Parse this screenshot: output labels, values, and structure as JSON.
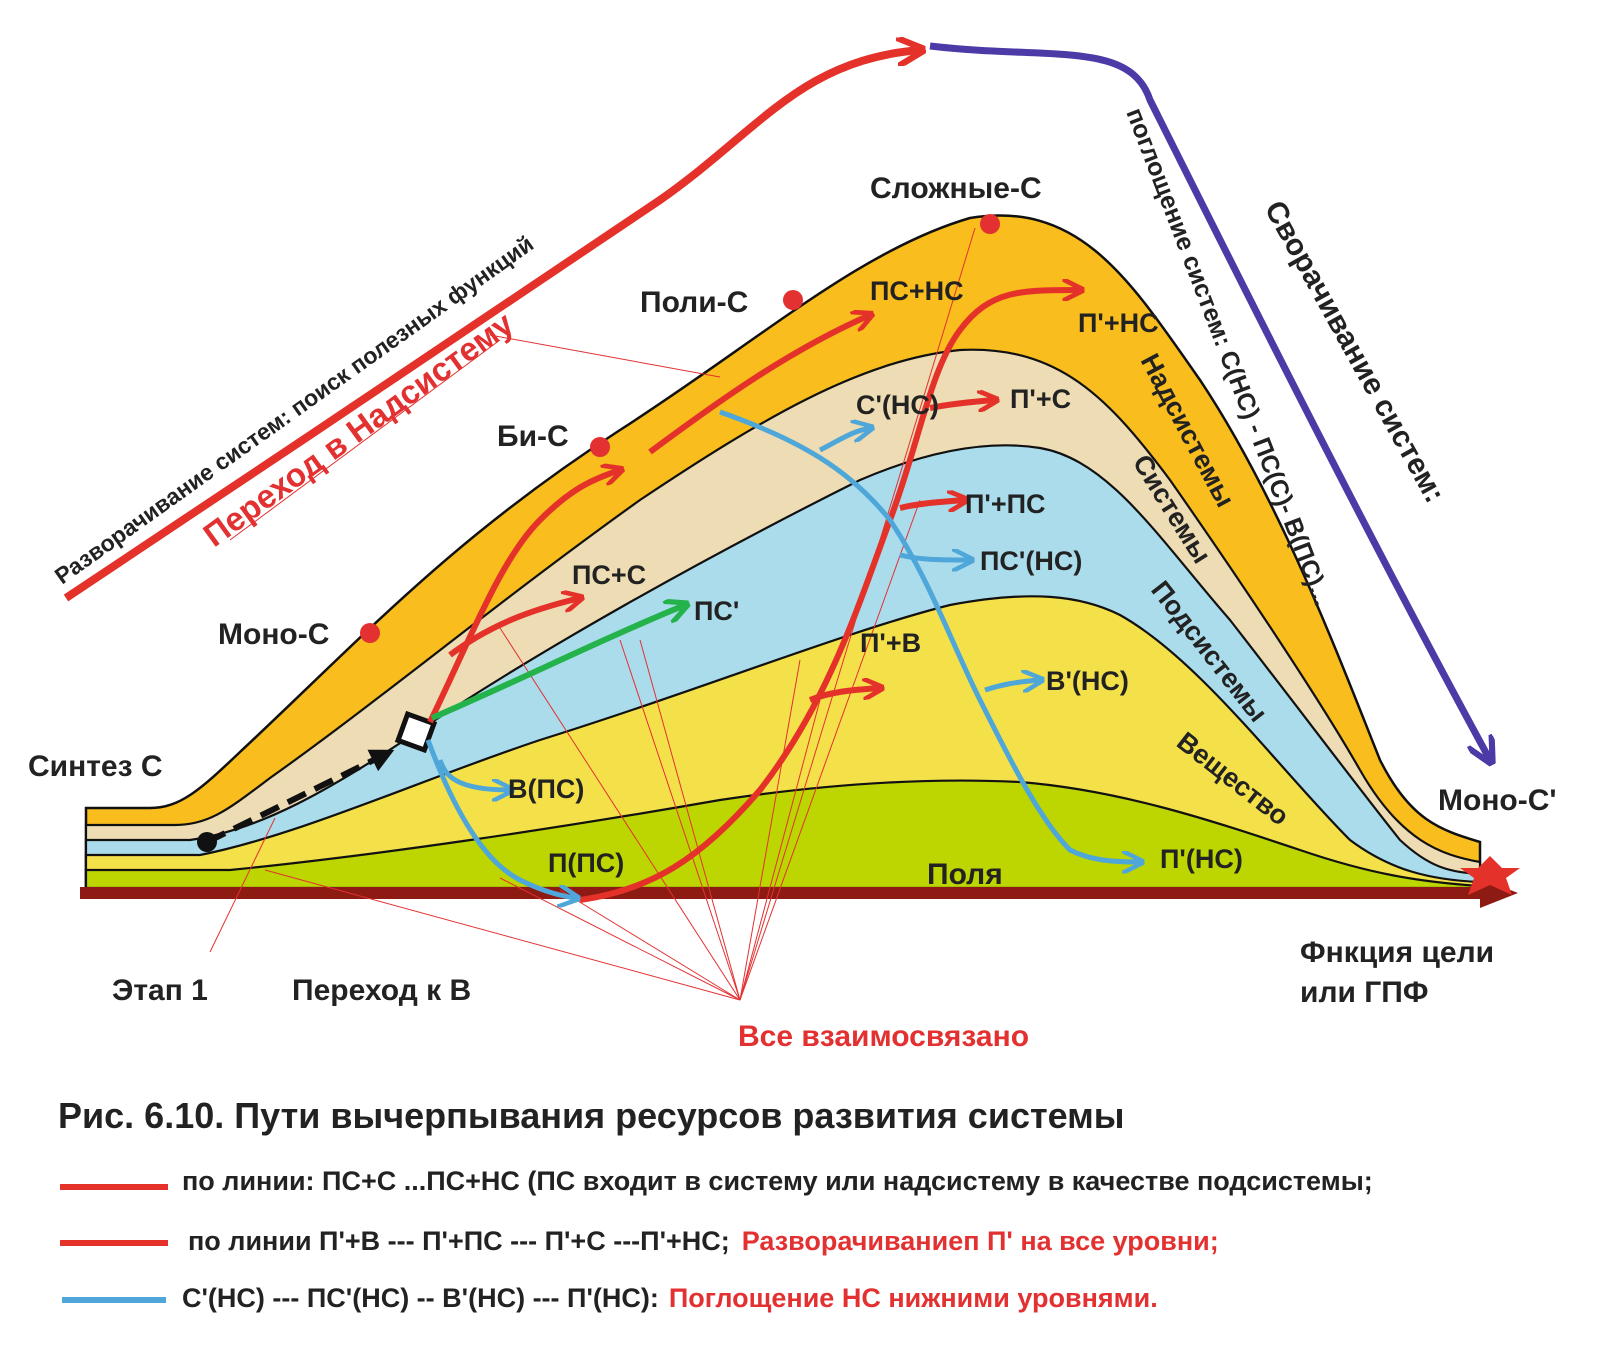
{
  "level_labels": {
    "nadsistemy": "Надсистемы",
    "sistemy": "Системы",
    "podsistemy": "Подсистемы",
    "veshchestvo": "Вещество",
    "polya": "Поля"
  },
  "stage_labels": {
    "mono": "Моно-С",
    "bi": "Би-С",
    "poli": "Поли-С",
    "slozhnye": "Сложные-С",
    "mono_prime": "Моно-С'",
    "sintez": "Синтез С"
  },
  "node_labels": {
    "ps_s": "ПС+С",
    "ps": "ПС'",
    "ps_ns": "ПС+НС",
    "p_ns": "П'+НС",
    "s_ns": "С'(НС)",
    "p_s": "П'+С",
    "p_ps": "П'+ПС",
    "ps_prime_ns": "ПС'(НС)",
    "p_v": "П'+В",
    "v_prime_ns": "В'(НС)",
    "v_ps": "В(ПС)",
    "p_ps_low": "П(ПС)",
    "p_prime_ns": "П'(НС)"
  },
  "side_labels": {
    "unfolding": "Разворачивание систем: поиск полезных функций",
    "transition": "Переход в Надсистему",
    "absorption": "поглощение систем: С(НС) - ПС(С)- В(ПС)...",
    "folding": "Сворачивание систем:"
  },
  "bottom_labels": {
    "axis": [
      "Фнкция цели",
      "или ГПФ"
    ],
    "etap": "Этап 1",
    "perehod": "Переход к В",
    "vse": "Все взаимосвязано"
  },
  "caption": {
    "title": "Рис. 6.10. Пути вычерпывания ресурсов развития системы",
    "line1": "по линии: ПС+С ...ПС+НС (ПС входит в систему или надсистему в качестве подсистемы;",
    "line2_a": "по линии П'+В --- П'+ПС --- П'+С ---П'+НС;",
    "line2_b": "Разворачиваниеп П' на все  уровни;",
    "line3_a": "С'(НС) --- ПС'(НС) -- В'(НС) --- П'(НС):",
    "line3_b": "Поглощение НС нижними уровнями."
  },
  "colors": {
    "orange": "#f9bd1d",
    "beige": "#eddcb4",
    "cyan": "#aadcec",
    "yellow": "#f4e14a",
    "green": "#bdd500",
    "red": "#e4322a",
    "blue": "#4ea6d9",
    "purple": "#4c3aa6",
    "dark_red": "#8e1b13",
    "dot": "#e33131"
  }
}
